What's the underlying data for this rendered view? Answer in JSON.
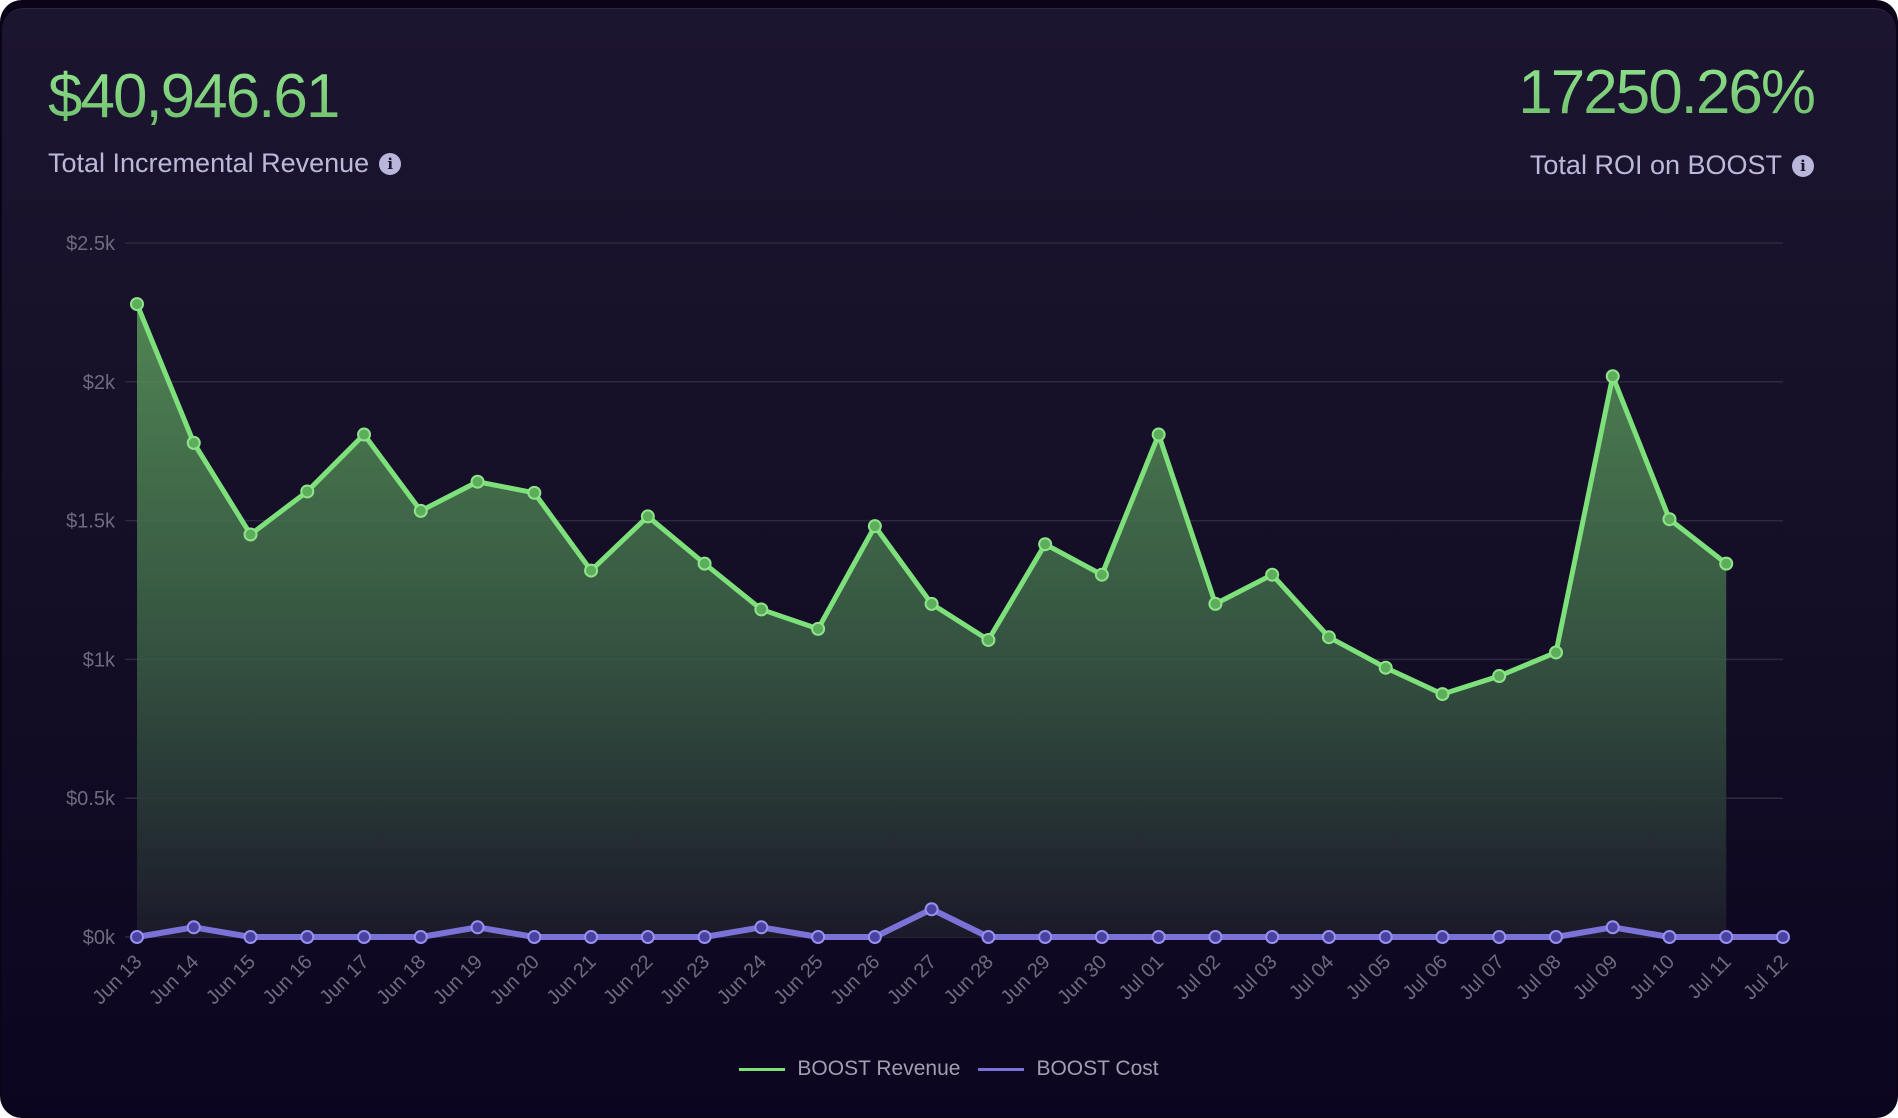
{
  "kpis": {
    "revenue": {
      "value": "$40,946.61",
      "label": "Total Incremental Revenue",
      "info_icon": "info-icon"
    },
    "roi": {
      "value": "17250.26%",
      "label": "Total ROI on BOOST",
      "info_icon": "info-icon"
    }
  },
  "colors": {
    "revenue": "#7ee07a",
    "cost": "#7b72d8",
    "grid": "#2e2840",
    "tick": "#6f6a80"
  },
  "chart_data": {
    "type": "area",
    "title": "",
    "xlabel": "",
    "ylabel": "",
    "ylim": [
      0,
      2500
    ],
    "grid": true,
    "legend_position": "bottom",
    "y_ticks": [
      {
        "value": 0,
        "label": "$0k"
      },
      {
        "value": 500,
        "label": "$0.5k"
      },
      {
        "value": 1000,
        "label": "$1k"
      },
      {
        "value": 1500,
        "label": "$1.5k"
      },
      {
        "value": 2000,
        "label": "$2k"
      },
      {
        "value": 2500,
        "label": "$2.5k"
      }
    ],
    "categories": [
      "Jun 13",
      "Jun 14",
      "Jun 15",
      "Jun 16",
      "Jun 17",
      "Jun 18",
      "Jun 19",
      "Jun 20",
      "Jun 21",
      "Jun 22",
      "Jun 23",
      "Jun 24",
      "Jun 25",
      "Jun 26",
      "Jun 27",
      "Jun 28",
      "Jun 29",
      "Jun 30",
      "Jul 01",
      "Jul 02",
      "Jul 03",
      "Jul 04",
      "Jul 05",
      "Jul 06",
      "Jul 07",
      "Jul 08",
      "Jul 09",
      "Jul 10",
      "Jul 11",
      "Jul 12"
    ],
    "series": [
      {
        "name": "BOOST Revenue",
        "type": "area",
        "values": [
          2280,
          1780,
          1450,
          1605,
          1810,
          1535,
          1640,
          1600,
          1320,
          1515,
          1345,
          1180,
          1110,
          1480,
          1200,
          1070,
          1415,
          1305,
          1810,
          1200,
          1305,
          1080,
          970,
          875,
          940,
          1025,
          2020,
          1505,
          1345,
          null
        ]
      },
      {
        "name": "BOOST Cost",
        "type": "line",
        "values": [
          0,
          35,
          0,
          0,
          0,
          0,
          35,
          0,
          0,
          0,
          0,
          35,
          0,
          0,
          100,
          0,
          0,
          0,
          0,
          0,
          0,
          0,
          0,
          0,
          0,
          0,
          35,
          0,
          0,
          0
        ]
      }
    ]
  }
}
